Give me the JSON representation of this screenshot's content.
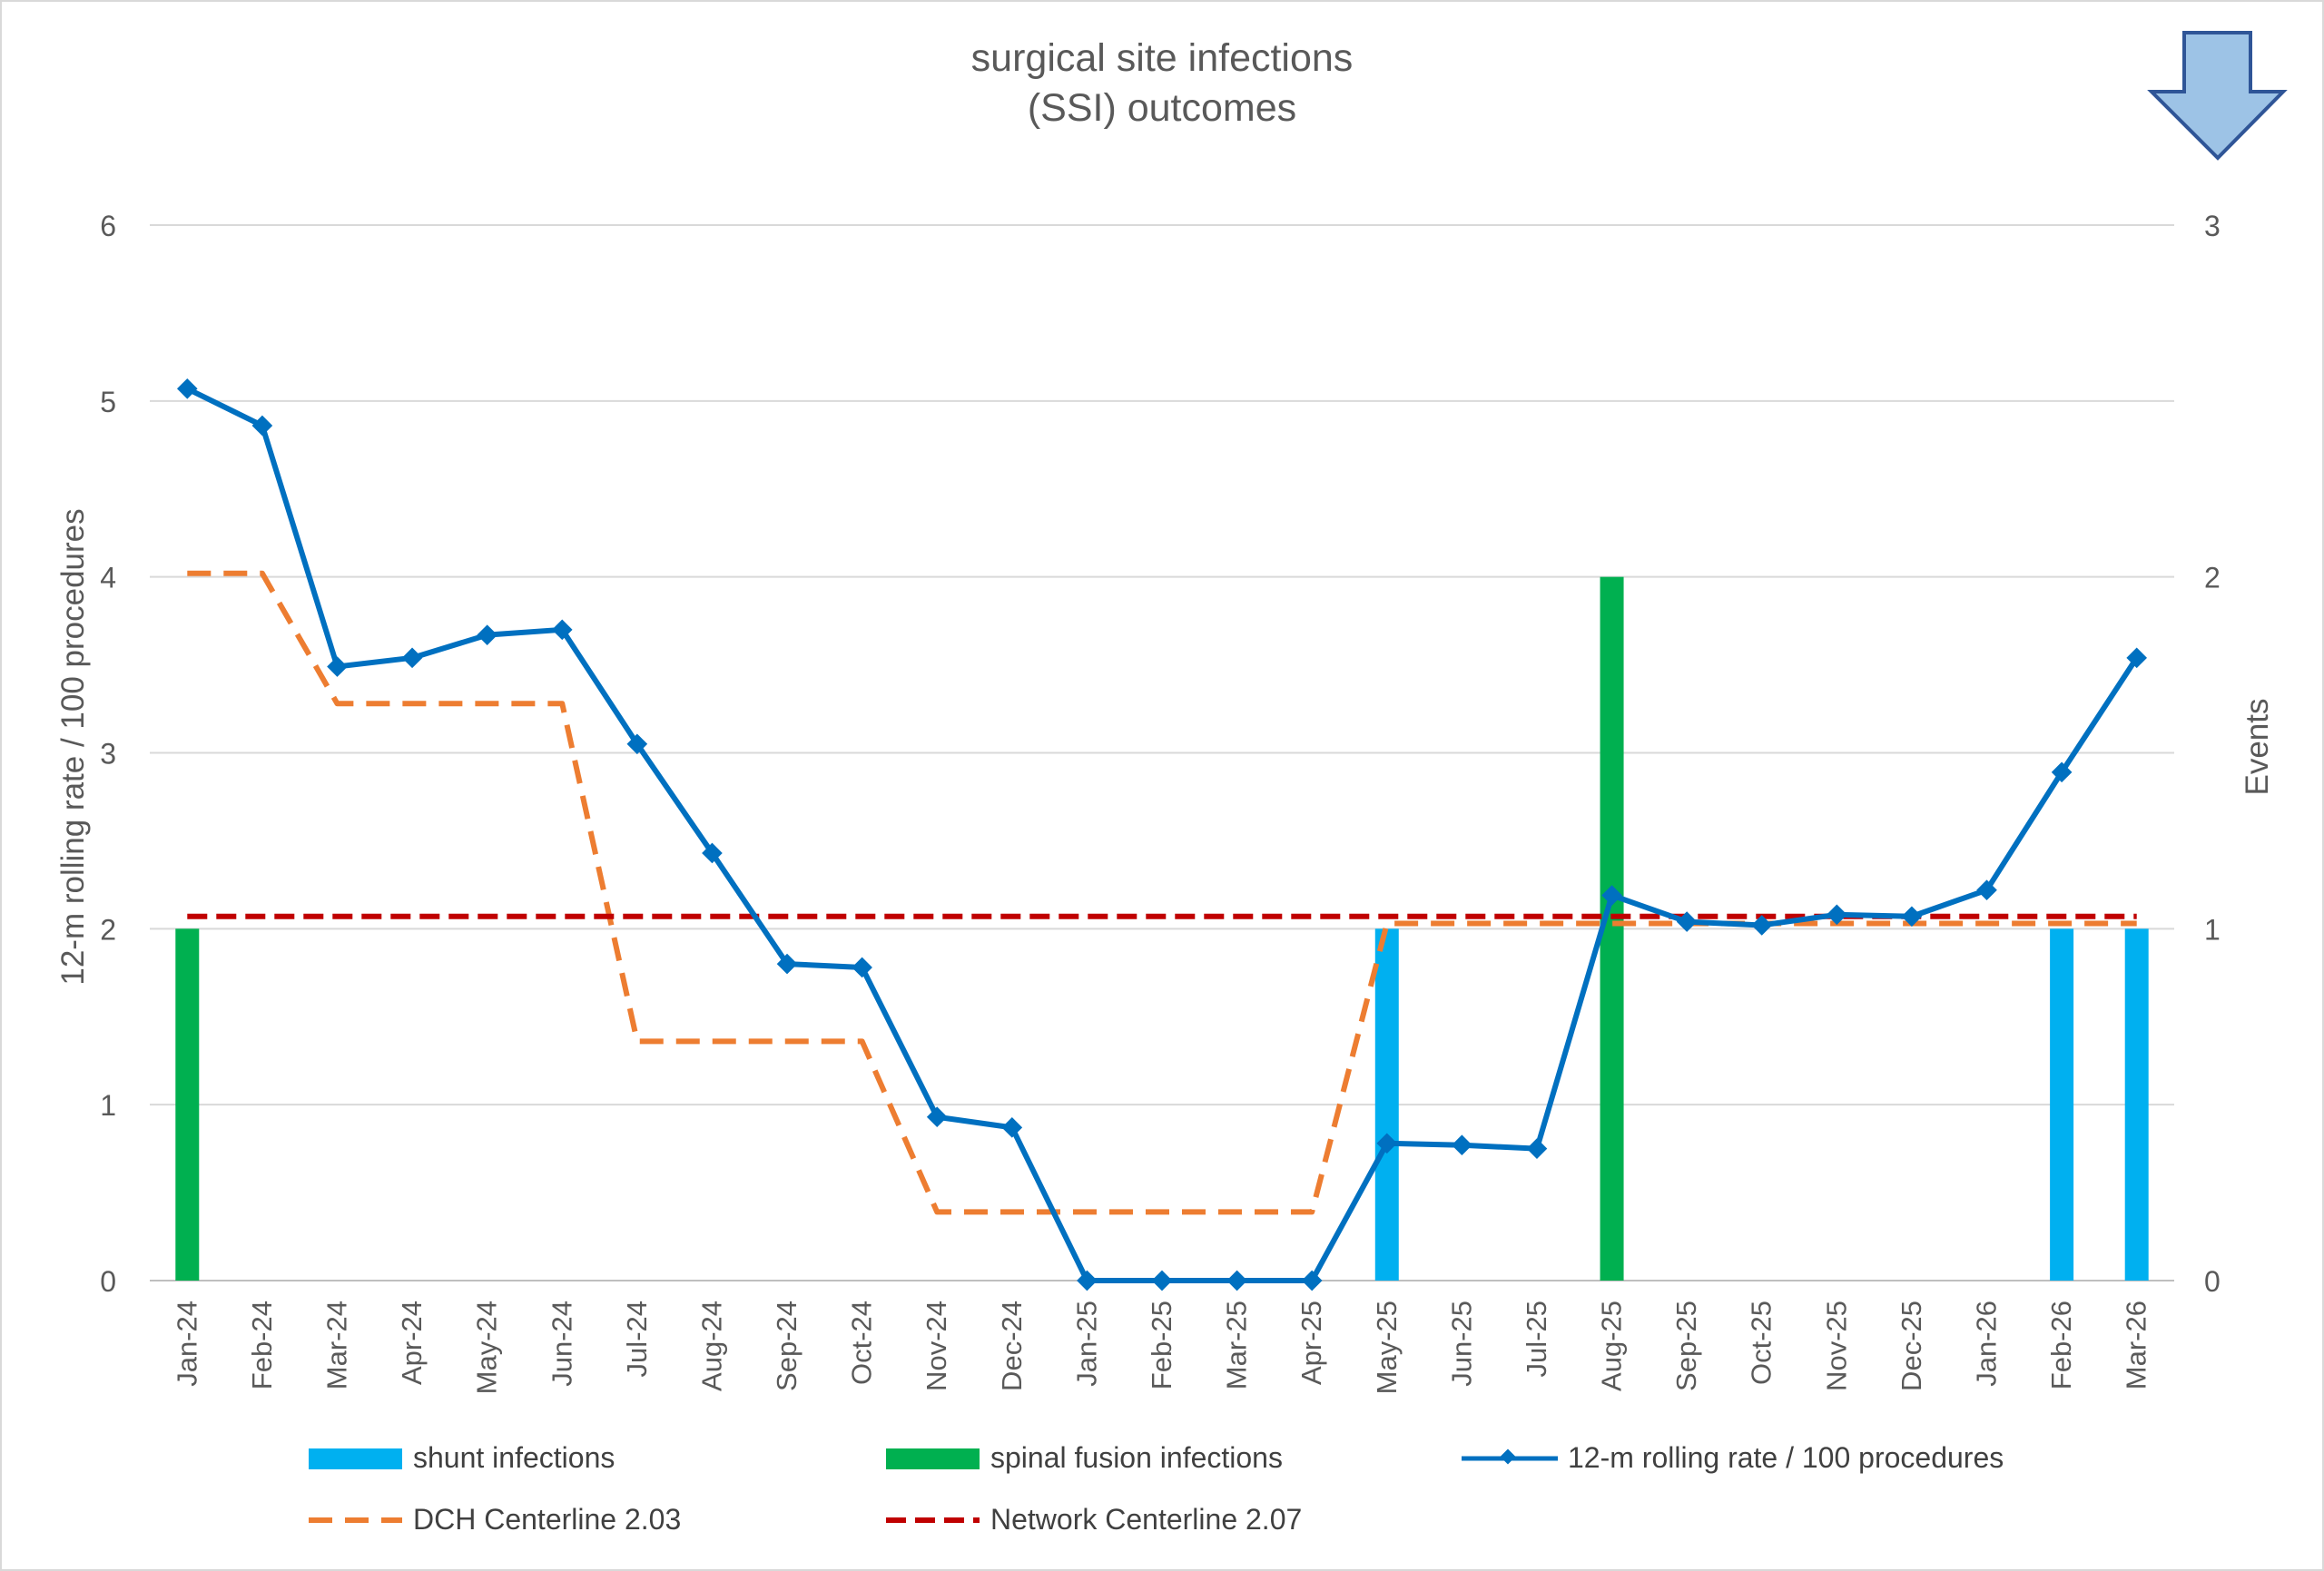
{
  "chart_data": {
    "type": "bar+line",
    "title_lines": [
      "surgical site infections",
      "(SSI) outcomes"
    ],
    "ylabel_left": "12-m rolling rate / 100 procedures",
    "ylabel_right": "Events",
    "ylim_left": [
      0,
      6
    ],
    "ylim_right": [
      0,
      3
    ],
    "yticks_left": [
      "0",
      "1",
      "2",
      "3",
      "4",
      "5",
      "6"
    ],
    "yticks_right": [
      "0",
      "1",
      "2",
      "3"
    ],
    "grid": true,
    "legend_position": "bottom",
    "categories": [
      "Jan-24",
      "Feb-24",
      "Mar-24",
      "Apr-24",
      "May-24",
      "Jun-24",
      "Jul-24",
      "Aug-24",
      "Sep-24",
      "Oct-24",
      "Nov-24",
      "Dec-24",
      "Jan-25",
      "Feb-25",
      "Mar-25",
      "Apr-25",
      "May-25",
      "Jun-25",
      "Jul-25",
      "Aug-25",
      "Sep-25",
      "Oct-25",
      "Nov-25",
      "Dec-25",
      "Jan-26",
      "Feb-26",
      "Mar-26"
    ],
    "series": [
      {
        "name": "shunt infections",
        "type": "bar",
        "axis": "right",
        "color": "#00b0f0",
        "values": [
          0,
          0,
          0,
          0,
          0,
          0,
          0,
          0,
          0,
          0,
          0,
          0,
          0,
          0,
          0,
          0,
          1,
          0,
          0,
          0,
          0,
          0,
          0,
          0,
          0,
          1,
          1
        ]
      },
      {
        "name": "spinal fusion infections",
        "type": "bar",
        "axis": "right",
        "color": "#00b050",
        "values": [
          1,
          0,
          0,
          0,
          0,
          0,
          0,
          0,
          0,
          0,
          0,
          0,
          0,
          0,
          0,
          0,
          0,
          0,
          0,
          2,
          0,
          0,
          0,
          0,
          0,
          0,
          0
        ]
      },
      {
        "name": "12-m rolling rate / 100 procedures",
        "type": "line",
        "axis": "left",
        "color": "#0070c0",
        "values": [
          5.07,
          4.86,
          3.49,
          3.54,
          3.67,
          3.7,
          3.05,
          2.43,
          1.8,
          1.78,
          0.93,
          0.87,
          0,
          0,
          0,
          0,
          0.78,
          0.77,
          0.75,
          2.19,
          2.04,
          2.02,
          2.08,
          2.07,
          2.22,
          2.89,
          3.54
        ]
      },
      {
        "name": "DCH Centerline 2.03",
        "type": "line-dashed",
        "axis": "left",
        "color": "#ed7d31",
        "values": [
          4.02,
          4.02,
          3.28,
          3.28,
          3.28,
          3.28,
          1.36,
          1.36,
          1.36,
          1.36,
          0.39,
          0.39,
          0.39,
          0.39,
          0.39,
          0.39,
          2.03,
          2.03,
          2.03,
          2.03,
          2.03,
          2.03,
          2.03,
          2.03,
          2.03,
          2.03,
          2.03
        ]
      },
      {
        "name": "Network Centerline 2.07",
        "type": "line-dashed",
        "axis": "left",
        "color": "#c00000",
        "values": [
          2.07,
          2.07,
          2.07,
          2.07,
          2.07,
          2.07,
          2.07,
          2.07,
          2.07,
          2.07,
          2.07,
          2.07,
          2.07,
          2.07,
          2.07,
          2.07,
          2.07,
          2.07,
          2.07,
          2.07,
          2.07,
          2.07,
          2.07,
          2.07,
          2.07,
          2.07,
          2.07
        ]
      }
    ],
    "annotation_icon": "down-arrow-icon"
  }
}
